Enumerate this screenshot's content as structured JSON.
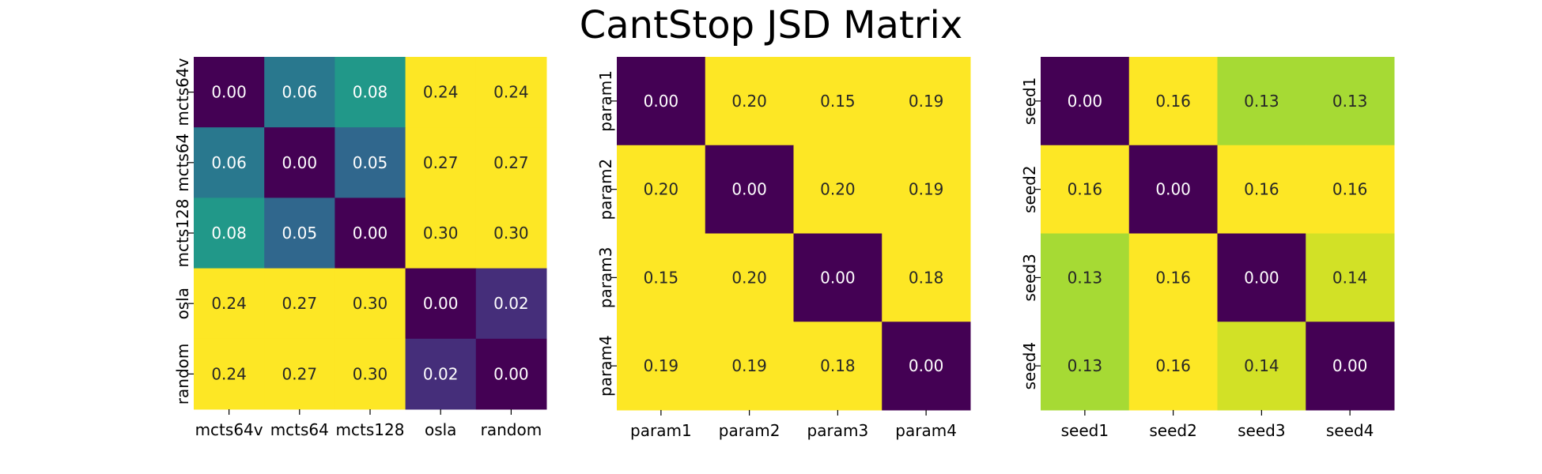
{
  "title": "CantStop JSD Matrix",
  "chart_data": [
    {
      "type": "heatmap",
      "labels": [
        "mcts64v",
        "mcts64",
        "mcts128",
        "osla",
        "random"
      ],
      "values": [
        [
          0.0,
          0.06,
          0.08,
          0.24,
          0.24
        ],
        [
          0.06,
          0.0,
          0.05,
          0.27,
          0.27
        ],
        [
          0.08,
          0.05,
          0.0,
          0.3,
          0.3
        ],
        [
          0.24,
          0.27,
          0.3,
          0.0,
          0.02
        ],
        [
          0.24,
          0.27,
          0.3,
          0.02,
          0.0
        ]
      ],
      "color_range": [
        0.0,
        0.15
      ],
      "colormap": "viridis",
      "annotation_format": "0.00"
    },
    {
      "type": "heatmap",
      "labels": [
        "param1",
        "param2",
        "param3",
        "param4"
      ],
      "values": [
        [
          0.0,
          0.2,
          0.15,
          0.19
        ],
        [
          0.2,
          0.0,
          0.2,
          0.19
        ],
        [
          0.15,
          0.2,
          0.0,
          0.18
        ],
        [
          0.19,
          0.19,
          0.18,
          0.0
        ]
      ],
      "color_range": [
        0.0,
        0.15
      ],
      "colormap": "viridis",
      "annotation_format": "0.00"
    },
    {
      "type": "heatmap",
      "labels": [
        "seed1",
        "seed2",
        "seed3",
        "seed4"
      ],
      "values": [
        [
          0.0,
          0.16,
          0.13,
          0.13
        ],
        [
          0.16,
          0.0,
          0.16,
          0.16
        ],
        [
          0.13,
          0.16,
          0.0,
          0.14
        ],
        [
          0.13,
          0.16,
          0.14,
          0.0
        ]
      ],
      "color_range": [
        0.0,
        0.15
      ],
      "colormap": "viridis",
      "annotation_format": "0.00"
    }
  ]
}
